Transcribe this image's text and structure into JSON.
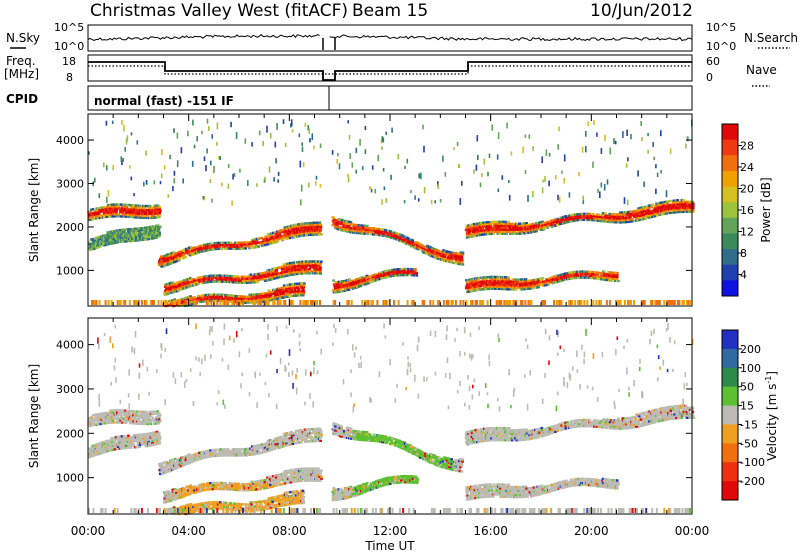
{
  "header": {
    "station": "Christmas Valley West (fitACF)",
    "beam": "Beam 15",
    "date": "10/Jun/2012"
  },
  "strips": {
    "nsky_label": "N.Sky",
    "nsky_ticks": [
      "10^5",
      "10^0"
    ],
    "nsearch_label": "N.Search",
    "nsearch_ticks": [
      "10^5",
      "10^0"
    ],
    "freq_label": "Freq.",
    "freq_unit": "[MHz]",
    "freq_ticks": [
      "18",
      "8"
    ],
    "nave_label": "Nave",
    "nave_ticks": [
      "60",
      "0"
    ],
    "cpid_label": "CPID",
    "cpid_text": "normal (fast) -151 IF"
  },
  "chart_data": [
    {
      "type": "heatmap",
      "name": "power",
      "ylabel": "Slant Range [km]",
      "ylim": [
        180,
        4600
      ],
      "yticks": [
        "1000",
        "2000",
        "3000",
        "4000"
      ],
      "xlabel": "Time UT",
      "xlim": [
        0,
        24
      ],
      "xticks": [
        "00:00",
        "04:00",
        "08:00",
        "12:00",
        "16:00",
        "20:00",
        "00:00"
      ],
      "data_gap_hours": [
        9.25,
        9.6
      ],
      "colorbar": {
        "label": "Power [dB]",
        "ticks": [
          "4",
          "8",
          "12",
          "16",
          "20",
          "24",
          "28"
        ],
        "colors": [
          "#1010e0",
          "#2040b0",
          "#2e6e8a",
          "#3a8a5a",
          "#62a45a",
          "#9cc23e",
          "#d4c020",
          "#f0a000",
          "#f07010",
          "#ee3a10",
          "#e00808"
        ]
      },
      "echo_bands": [
        {
          "t_start": 0.0,
          "t_end": 2.8,
          "range_start": 2300,
          "range_end": 2450,
          "level": "strong"
        },
        {
          "t_start": 0.0,
          "t_end": 2.8,
          "range_start": 1600,
          "range_end": 2000,
          "level": "weak"
        },
        {
          "t_start": 2.8,
          "t_end": 9.2,
          "range_start": 1300,
          "range_end": 2000,
          "level": "strong"
        },
        {
          "t_start": 3.0,
          "t_end": 9.2,
          "range_start": 650,
          "range_end": 1100,
          "level": "strong"
        },
        {
          "t_start": 3.0,
          "t_end": 8.5,
          "range_start": 250,
          "range_end": 550,
          "level": "strong"
        },
        {
          "t_start": 9.7,
          "t_end": 14.8,
          "range_start": 2200,
          "range_end": 1300,
          "level": "strong"
        },
        {
          "t_start": 9.7,
          "t_end": 13.0,
          "range_start": 700,
          "range_end": 1000,
          "level": "strong"
        },
        {
          "t_start": 15.0,
          "t_end": 21.0,
          "range_start": 650,
          "range_end": 950,
          "level": "strong"
        },
        {
          "t_start": 15.0,
          "t_end": 24.0,
          "range_start": 1900,
          "range_end": 2500,
          "level": "strong"
        }
      ]
    },
    {
      "type": "heatmap",
      "name": "velocity",
      "ylabel": "Slant Range [km]",
      "ylim": [
        180,
        4600
      ],
      "yticks": [
        "1000",
        "2000",
        "3000",
        "4000"
      ],
      "xlabel": "Time UT",
      "xlim": [
        0,
        24
      ],
      "xticks": [
        "00:00",
        "04:00",
        "08:00",
        "12:00",
        "16:00",
        "20:00",
        "00:00"
      ],
      "data_gap_hours": [
        9.25,
        9.6
      ],
      "colorbar": {
        "label": "Velocity [m s^-1]",
        "ticks": [
          "200",
          "100",
          "50",
          "15",
          "-15",
          "-50",
          "-100",
          "-200"
        ],
        "colors": [
          "#2030c0",
          "#2f6aa0",
          "#2e8a4a",
          "#5cc030",
          "#bcbcb4",
          "#f0a020",
          "#f07010",
          "#ee3010",
          "#e00808"
        ]
      },
      "ground_scatter_color": "#bcbcb4"
    }
  ]
}
